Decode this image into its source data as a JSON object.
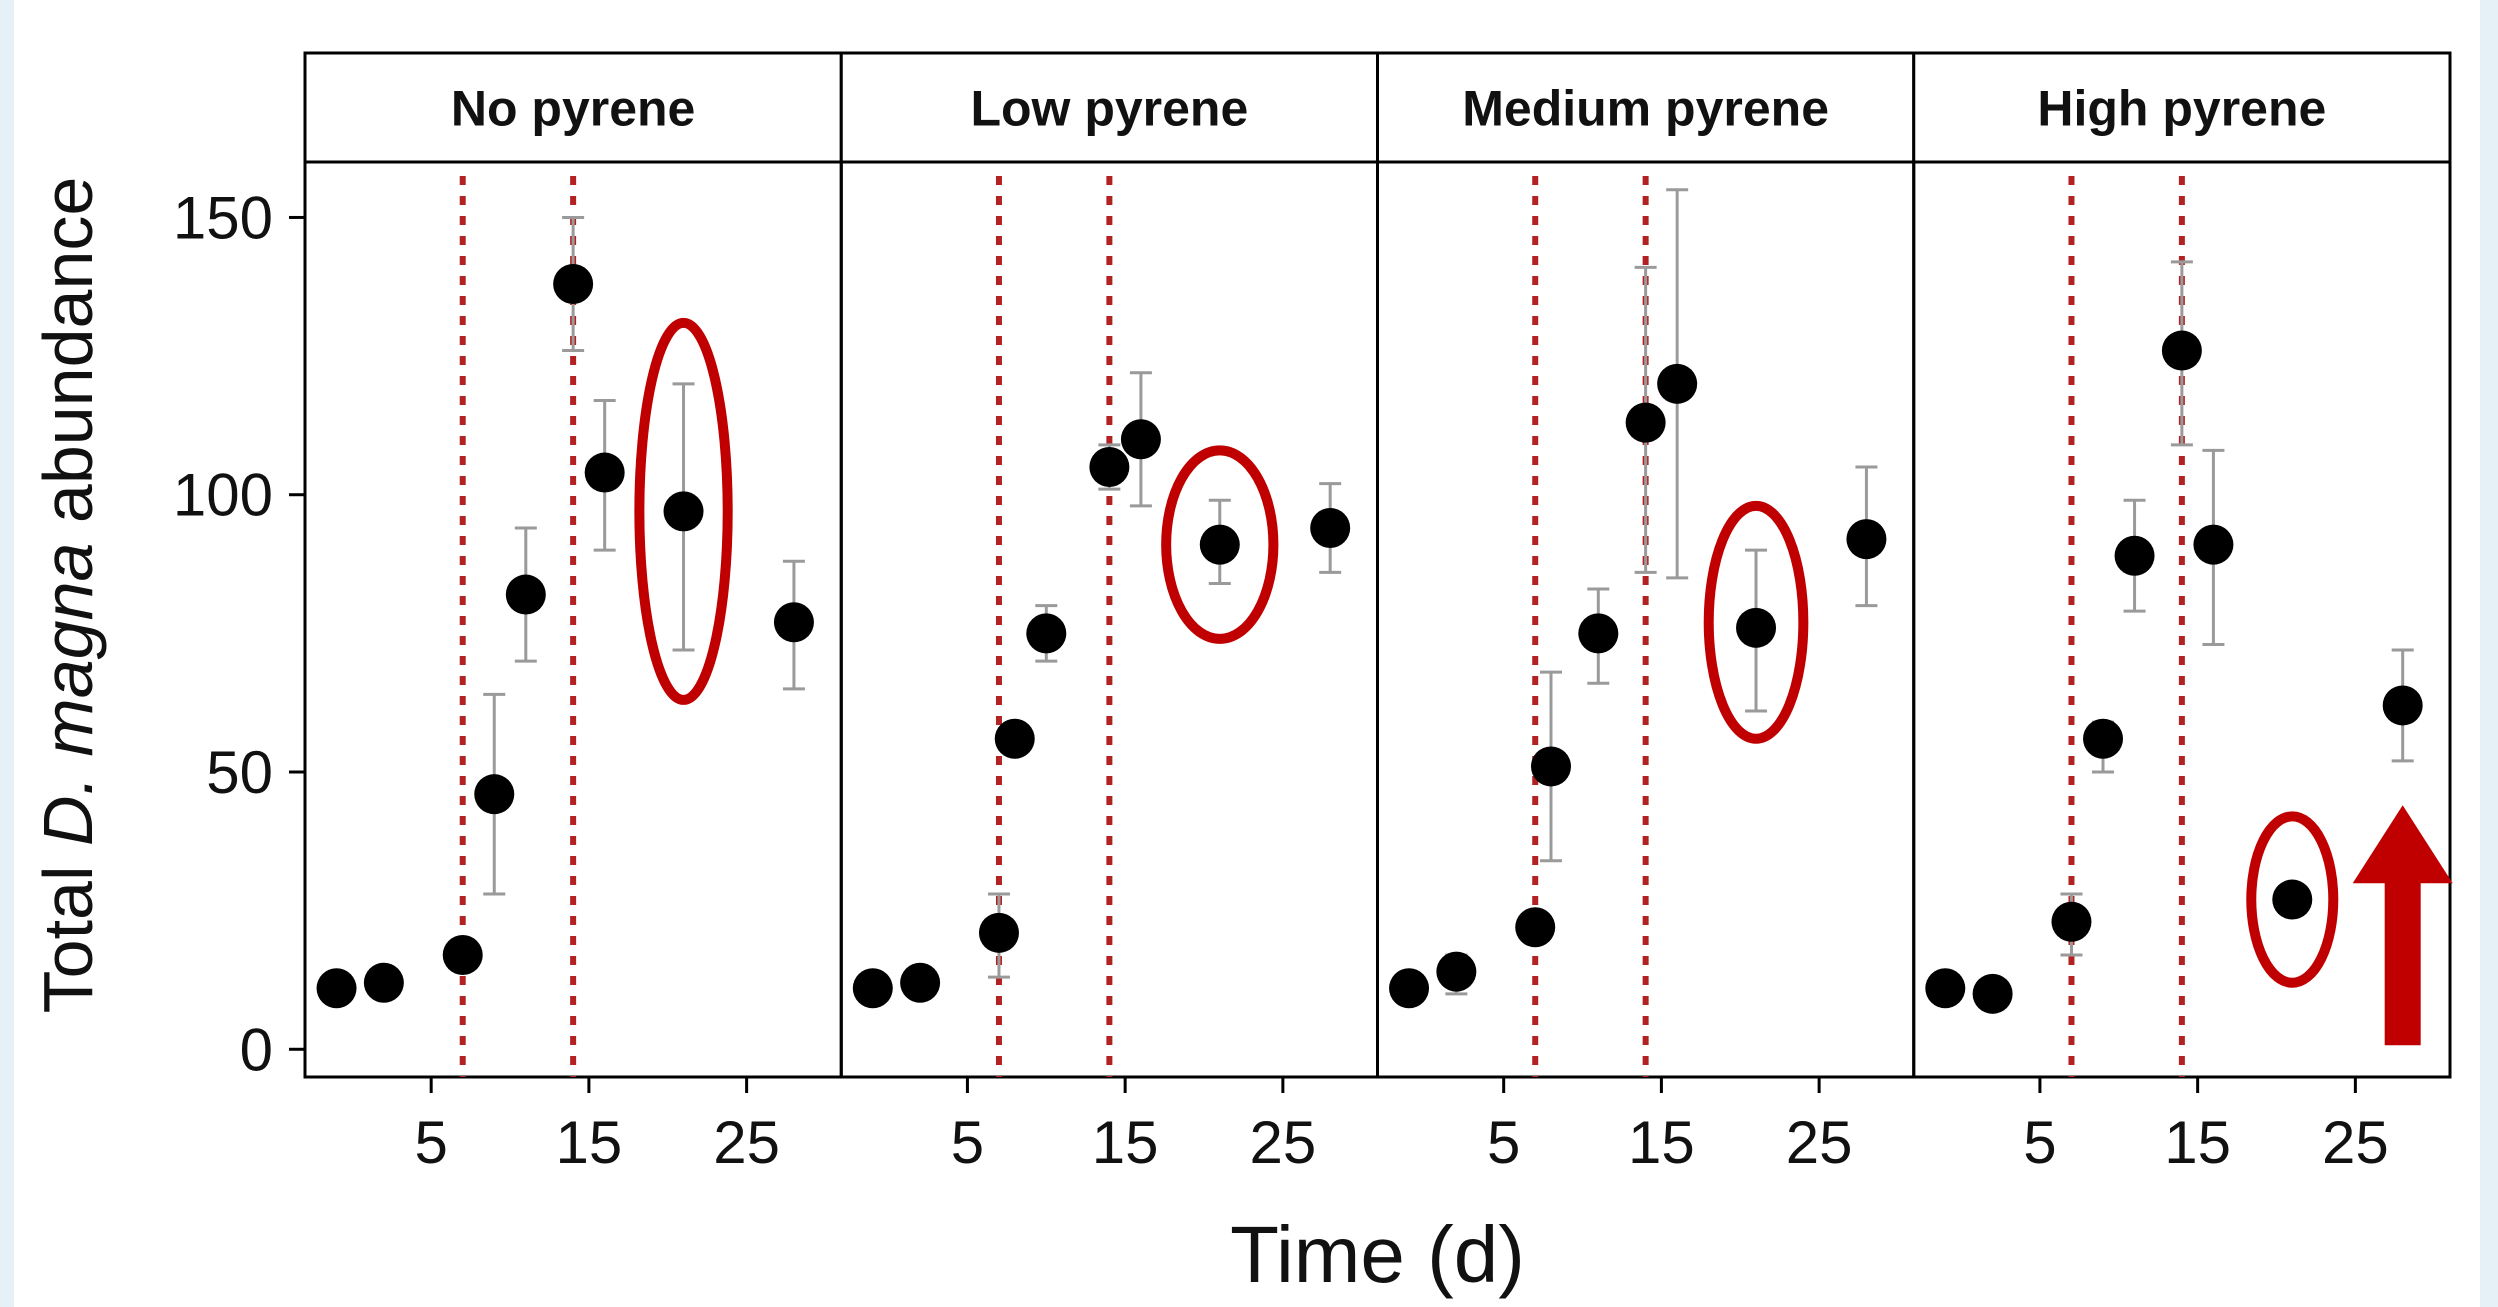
{
  "chart_data": {
    "type": "scatter",
    "ylabel": {
      "prefix": "Total ",
      "italic": "D. magna",
      "suffix": " abundance"
    },
    "xlabel": "Time (d)",
    "ylim": [
      -5,
      160
    ],
    "xlim": [
      -3,
      31
    ],
    "y_ticks": [
      0,
      50,
      100,
      150
    ],
    "x_ticks": [
      5,
      15,
      25
    ],
    "markers": {
      "dotted_vlines_x": [
        7,
        14
      ],
      "vline_color": "#b22222",
      "highlight_color": "#c00000"
    },
    "panels": [
      {
        "name": "No pyrene",
        "points": [
          {
            "x": -1,
            "y": 11
          },
          {
            "x": 2,
            "y": 12
          },
          {
            "x": 7,
            "y": 17,
            "lo": 15,
            "hi": 19
          },
          {
            "x": 9,
            "y": 46,
            "lo": 28,
            "hi": 64
          },
          {
            "x": 11,
            "y": 82,
            "lo": 70,
            "hi": 94
          },
          {
            "x": 14,
            "y": 138,
            "lo": 126,
            "hi": 150
          },
          {
            "x": 16,
            "y": 104,
            "lo": 90,
            "hi": 117
          },
          {
            "x": 21,
            "y": 97,
            "lo": 72,
            "hi": 120
          },
          {
            "x": 28,
            "y": 77,
            "lo": 65,
            "hi": 88
          }
        ],
        "highlight": {
          "x": 21,
          "y": 97,
          "rx_days": 2.8,
          "ry_units": 34
        }
      },
      {
        "name": "Low pyrene",
        "points": [
          {
            "x": -1,
            "y": 11
          },
          {
            "x": 2,
            "y": 12
          },
          {
            "x": 7,
            "y": 21,
            "lo": 13,
            "hi": 28
          },
          {
            "x": 8,
            "y": 56,
            "lo": 55,
            "hi": 57
          },
          {
            "x": 10,
            "y": 75,
            "lo": 70,
            "hi": 80
          },
          {
            "x": 14,
            "y": 105,
            "lo": 101,
            "hi": 109
          },
          {
            "x": 16,
            "y": 110,
            "lo": 98,
            "hi": 122
          },
          {
            "x": 21,
            "y": 91,
            "lo": 84,
            "hi": 99
          },
          {
            "x": 28,
            "y": 94,
            "lo": 86,
            "hi": 102
          }
        ],
        "highlight": {
          "x": 21,
          "y": 91,
          "rx_days": 3.4,
          "ry_units": 17
        }
      },
      {
        "name": "Medium pyrene",
        "points": [
          {
            "x": -1,
            "y": 11
          },
          {
            "x": 2,
            "y": 14,
            "lo": 10,
            "hi": 17
          },
          {
            "x": 7,
            "y": 22,
            "lo": 20,
            "hi": 24
          },
          {
            "x": 8,
            "y": 51,
            "lo": 34,
            "hi": 68
          },
          {
            "x": 11,
            "y": 75,
            "lo": 66,
            "hi": 83
          },
          {
            "x": 14,
            "y": 113,
            "lo": 86,
            "hi": 141
          },
          {
            "x": 16,
            "y": 120,
            "lo": 85,
            "hi": 155
          },
          {
            "x": 21,
            "y": 76,
            "lo": 61,
            "hi": 90
          },
          {
            "x": 28,
            "y": 92,
            "lo": 80,
            "hi": 105
          }
        ],
        "highlight": {
          "x": 21,
          "y": 77,
          "rx_days": 3.0,
          "ry_units": 21
        }
      },
      {
        "name": "High pyrene",
        "points": [
          {
            "x": -1,
            "y": 11
          },
          {
            "x": 2,
            "y": 10
          },
          {
            "x": 7,
            "y": 23,
            "lo": 17,
            "hi": 28
          },
          {
            "x": 9,
            "y": 56,
            "lo": 50,
            "hi": 59
          },
          {
            "x": 11,
            "y": 89,
            "lo": 79,
            "hi": 99
          },
          {
            "x": 14,
            "y": 126,
            "lo": 109,
            "hi": 142
          },
          {
            "x": 16,
            "y": 91,
            "lo": 73,
            "hi": 108
          },
          {
            "x": 21,
            "y": 27
          },
          {
            "x": 28,
            "y": 62,
            "lo": 52,
            "hi": 72
          }
        ],
        "highlight": {
          "x": 21,
          "y": 27,
          "rx_days": 2.6,
          "ry_units": 15
        },
        "arrow": {
          "x": 28,
          "from_y": 0,
          "to_y": 44
        }
      }
    ]
  }
}
